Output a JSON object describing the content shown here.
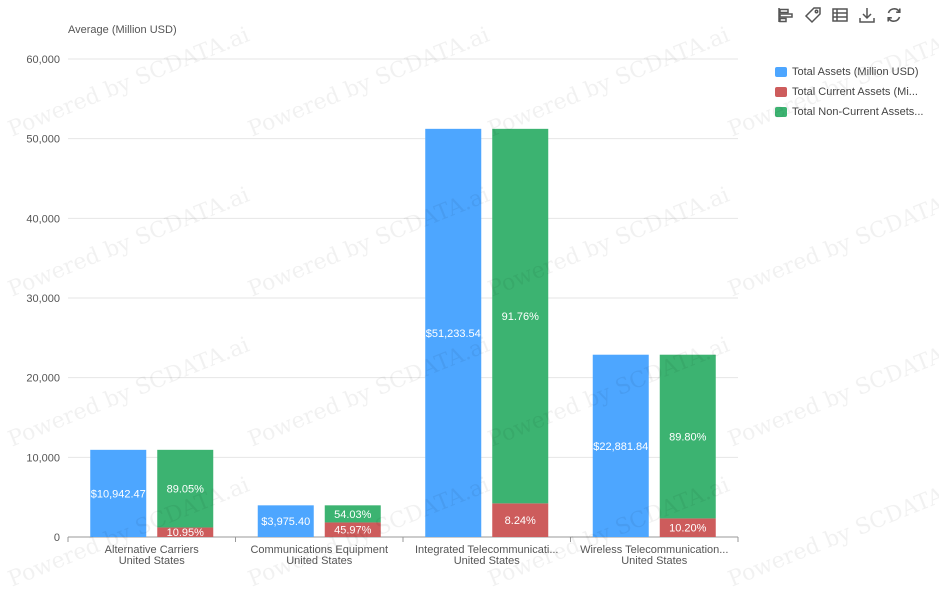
{
  "toolbar": {
    "icons": [
      "bar-chart-icon",
      "tag-icon",
      "table-icon",
      "download-icon",
      "refresh-icon"
    ]
  },
  "watermark": "Powered by SCDATA.ai",
  "chart_data": {
    "type": "bar",
    "ylabel": "Average (Million USD)",
    "ylim": [
      0,
      60000
    ],
    "yticks": [
      "0",
      "10,000",
      "20,000",
      "30,000",
      "40,000",
      "50,000",
      "60,000"
    ],
    "categories": [
      [
        "Alternative Carriers",
        "United States"
      ],
      [
        "Communications Equipment",
        "United States"
      ],
      [
        "Integrated Telecommunicati...",
        "United States"
      ],
      [
        "Wireless Telecommunication...",
        "United States"
      ]
    ],
    "legend": [
      {
        "name": "Total Assets (Million USD)",
        "color": "#4da6ff"
      },
      {
        "name": "Total Current Assets (Mi...",
        "color": "#cd5c5c"
      },
      {
        "name": "Total Non-Current Assets...",
        "color": "#3cb371"
      }
    ],
    "series": [
      {
        "name": "Total Assets (Million USD)",
        "values": [
          10942.47,
          3975.4,
          51233.54,
          22881.84
        ],
        "labels": [
          "$10,942.47",
          "$3,975.40",
          "$51,233.54",
          "$22,881.84"
        ]
      },
      {
        "name": "Total Current Assets (Mi...",
        "values": [
          1198.2,
          1827.49,
          4221.64,
          2333.95
        ],
        "labels": [
          "10.95%",
          "45.97%",
          "8.24%",
          "10.20%"
        ]
      },
      {
        "name": "Total Non-Current Assets...",
        "values": [
          9744.27,
          2147.91,
          47011.9,
          20547.89
        ],
        "labels": [
          "89.05%",
          "54.03%",
          "91.76%",
          "89.80%"
        ]
      }
    ]
  }
}
